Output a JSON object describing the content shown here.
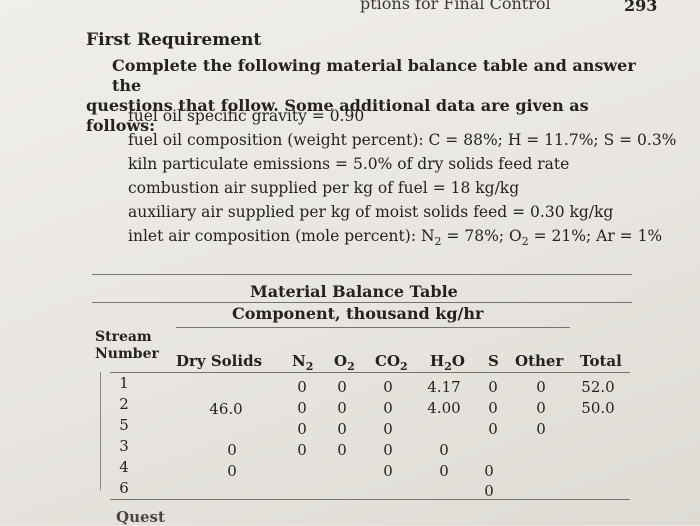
{
  "header": {
    "running_head": "ptions for Final Control",
    "page_number": "293"
  },
  "section": {
    "heading": "First Requirement",
    "instructions_line1": "Complete the following material balance table and answer the",
    "instructions_line2": "questions that follow. Some additional data are given as follows:"
  },
  "given_data": {
    "specific_gravity": "fuel oil specific gravity = 0.90",
    "composition": "fuel oil composition (weight percent): C = 88%; H = 11.7%; S = 0.3%",
    "particulate": "kiln particulate emissions = 5.0% of dry solids feed rate",
    "combustion_air": "combustion air supplied per kg of fuel = 18 kg/kg",
    "auxiliary_air": "auxiliary air supplied per kg of moist solids feed = 0.30 kg/kg",
    "inlet_air": {
      "prefix": "inlet air composition (mole percent): N",
      "n2_sub": "2",
      "n2_val": " = 78%; O",
      "o2_sub": "2",
      "o2_val": " = 21%; Ar = 1%"
    }
  },
  "table": {
    "title": "Material Balance Table",
    "subtitle": "Component, thousand kg/hr",
    "stream_label_1": "Stream",
    "stream_label_2": "Number",
    "columns": {
      "dry_solids": "Dry Solids",
      "n2": "N",
      "n2_sub": "2",
      "o2": "O",
      "o2_sub": "2",
      "co2": "CO",
      "co2_sub": "2",
      "h2o_a": "H",
      "h2o_sub": "2",
      "h2o_b": "O",
      "s": "S",
      "other": "Other",
      "total": "Total"
    },
    "rows": [
      {
        "stream": "1",
        "dry_solids": "",
        "n2": "0",
        "o2": "0",
        "co2": "0",
        "h2o": "4.17",
        "s": "0",
        "other": "0",
        "total": "52.0"
      },
      {
        "stream": "2",
        "dry_solids": "46.0",
        "n2": "0",
        "o2": "0",
        "co2": "0",
        "h2o": "4.00",
        "s": "0",
        "other": "0",
        "total": "50.0"
      },
      {
        "stream": "5",
        "dry_solids": "",
        "n2": "0",
        "o2": "0",
        "co2": "0",
        "h2o": "",
        "s": "0",
        "other": "0",
        "total": ""
      },
      {
        "stream": "3",
        "dry_solids": "0",
        "n2": "0",
        "o2": "0",
        "co2": "0",
        "h2o": "0",
        "s": "",
        "other": "",
        "total": ""
      },
      {
        "stream": "4",
        "dry_solids": "0",
        "n2": "",
        "o2": "",
        "co2": "0",
        "h2o": "0",
        "s": "0",
        "other": "",
        "total": ""
      },
      {
        "stream": "6",
        "dry_solids": "",
        "n2": "",
        "o2": "",
        "co2": "",
        "h2o": "",
        "s": "0",
        "other": "",
        "total": ""
      }
    ]
  },
  "footer": {
    "next_text": "Quest"
  }
}
